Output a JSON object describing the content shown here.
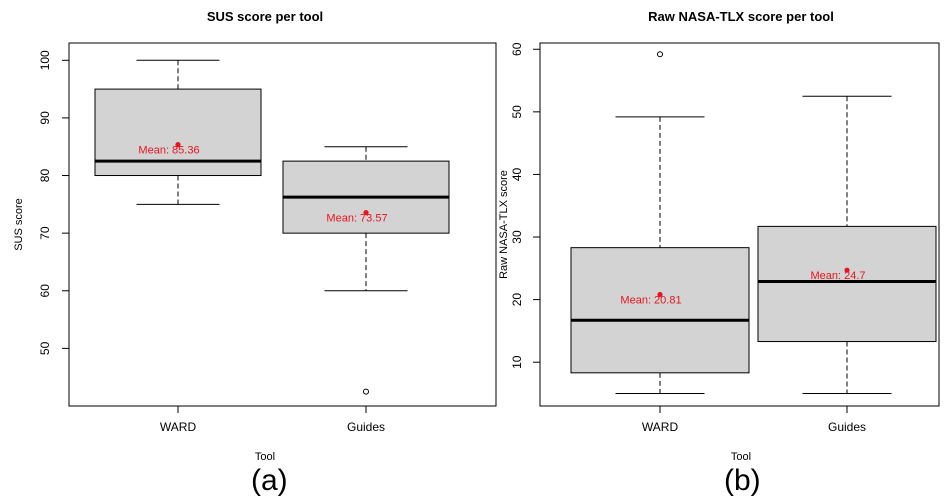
{
  "chart_data": [
    {
      "type": "boxplot",
      "title": "SUS score per tool",
      "xlabel": "Tool",
      "ylabel": "SUS score",
      "ylim": [
        40,
        103
      ],
      "yticks": [
        50,
        60,
        70,
        80,
        90,
        100
      ],
      "categories": [
        "WARD",
        "Guides"
      ],
      "boxes": [
        {
          "category": "WARD",
          "whisker_low": 75,
          "q1": 80,
          "median": 82.5,
          "q3": 95,
          "whisker_high": 100,
          "outliers": [],
          "mean": 85.36,
          "mean_label": "Mean: 85.36"
        },
        {
          "category": "Guides",
          "whisker_low": 60,
          "q1": 70,
          "median": 76.25,
          "q3": 82.5,
          "whisker_high": 85,
          "outliers": [
            42.5
          ],
          "mean": 73.57,
          "mean_label": "Mean: 73.57"
        }
      ],
      "box_fill": "#d3d3d3",
      "mean_color": "#e8141e",
      "grid": false
    },
    {
      "type": "boxplot",
      "title": "Raw NASA-TLX score per tool",
      "xlabel": "Tool",
      "ylabel": "Raw NASA-TLX score",
      "ylim": [
        3,
        61
      ],
      "yticks": [
        10,
        20,
        30,
        40,
        50,
        60
      ],
      "categories": [
        "WARD",
        "Guides"
      ],
      "boxes": [
        {
          "category": "WARD",
          "whisker_low": 5,
          "q1": 8.3,
          "median": 16.7,
          "q3": 28.3,
          "whisker_high": 49.2,
          "outliers": [
            59.2
          ],
          "mean": 20.81,
          "mean_label": "Mean: 20.81"
        },
        {
          "category": "Guides",
          "whisker_low": 5,
          "q1": 13.3,
          "median": 22.9,
          "q3": 31.7,
          "whisker_high": 52.5,
          "outliers": [],
          "mean": 24.7,
          "mean_label": "Mean: 24.7"
        }
      ],
      "box_fill": "#d3d3d3",
      "mean_color": "#e8141e",
      "grid": false
    }
  ],
  "panel_tags": [
    "(a)",
    "(b)"
  ]
}
